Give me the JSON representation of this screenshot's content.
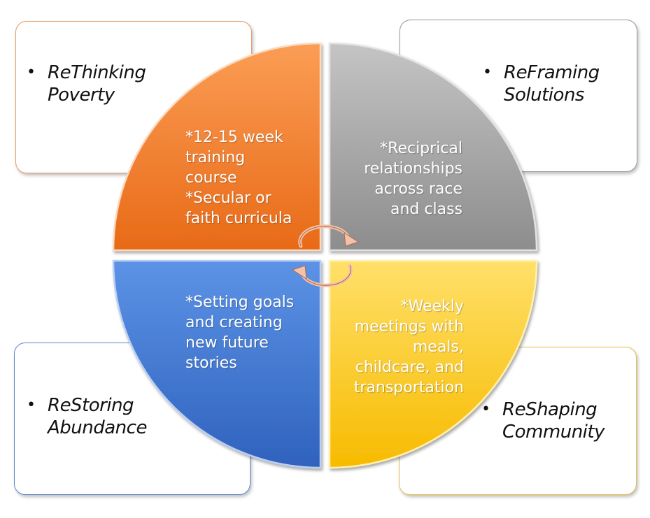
{
  "colors": {
    "orange": "#f07a2c",
    "gray": "#a6a6a6",
    "blue": "#3f77cf",
    "yellow": "#ffcd1f",
    "orange_border": "#e89a62",
    "gray_border": "#9a9a9a",
    "blue_border": "#5a86cc",
    "yellow_border": "#e7c04a"
  },
  "boxes": {
    "top_left": {
      "line1": "ReThinking",
      "line2": "Poverty"
    },
    "top_right": {
      "line1": "ReFraming",
      "line2": "Solutions"
    },
    "bottom_left": {
      "line1": "ReStoring",
      "line2": "Abundance"
    },
    "bottom_right": {
      "line1": "ReShaping",
      "line2": "Community"
    }
  },
  "quadrants": {
    "orange": {
      "lines": [
        "*12-15 week",
        "training",
        "course",
        "*Secular or",
        "faith curricula"
      ]
    },
    "gray": {
      "lines": [
        "*Reciprical",
        "relationships",
        "across race",
        "and class"
      ]
    },
    "blue": {
      "lines": [
        "*Setting goals",
        "and creating",
        "new future",
        "stories"
      ]
    },
    "yellow": {
      "lines": [
        "*Weekly",
        "meetings with",
        "meals,",
        "childcare, and",
        "transportation"
      ]
    }
  },
  "center_icon": "cycle-arrows-icon"
}
